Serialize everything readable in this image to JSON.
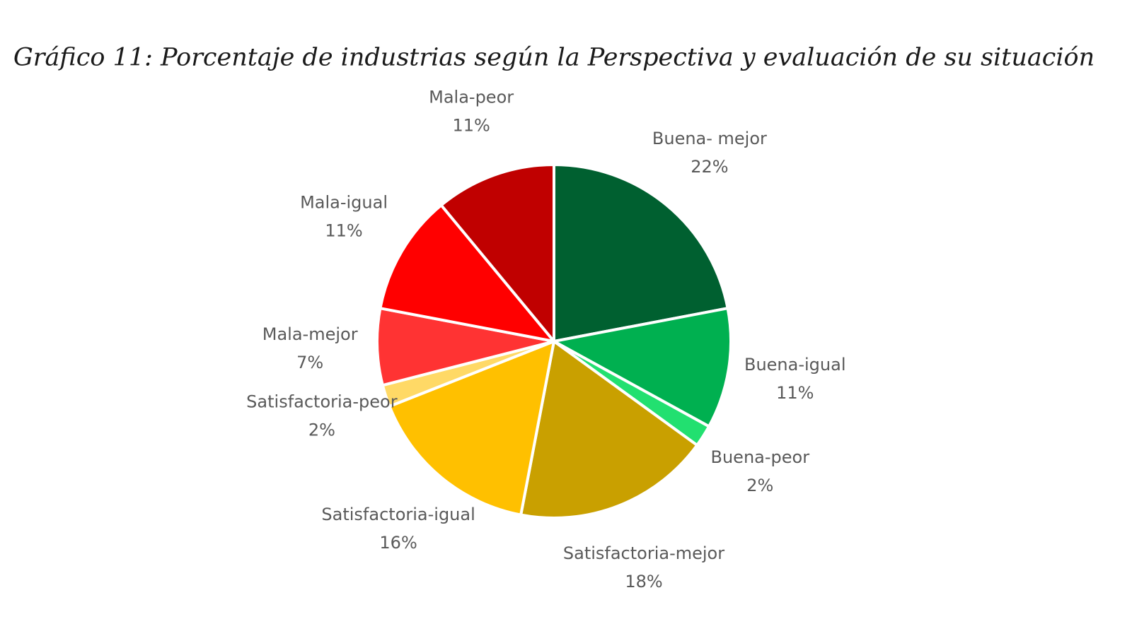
{
  "chart_data": {
    "type": "pie",
    "title": "Gráfico 11: Porcentaje de industrias según la Perspectiva y evaluación de su situación",
    "categories": [
      "Buena- mejor",
      "Buena-igual",
      "Buena-peor",
      "Satisfactoria-mejor",
      "Satisfactoria-igual",
      "Satisfactoria-peor",
      "Mala-mejor",
      "Mala-igual",
      "Mala-peor"
    ],
    "values": [
      22,
      11,
      2,
      18,
      16,
      2,
      7,
      11,
      11
    ],
    "value_labels": [
      "22%",
      "11%",
      "2%",
      "18%",
      "16%",
      "2%",
      "7%",
      "11%",
      "11%"
    ],
    "colors": [
      "#006030",
      "#00b050",
      "#22e070",
      "#c9a000",
      "#ffc000",
      "#ffd966",
      "#ff3333",
      "#ff0000",
      "#c00000"
    ]
  }
}
